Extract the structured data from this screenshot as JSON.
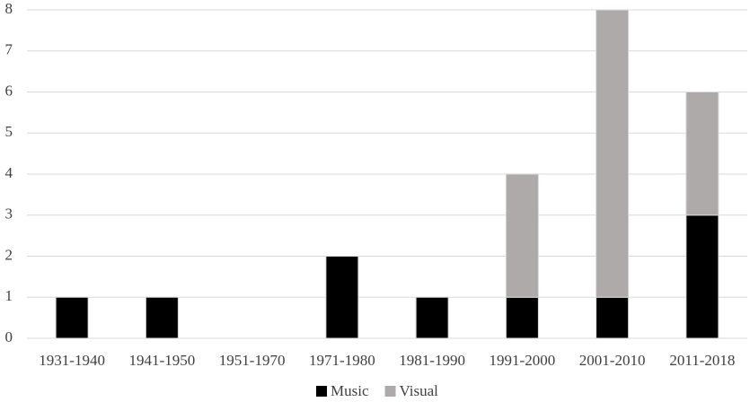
{
  "chart_data": {
    "type": "bar",
    "stacked": true,
    "categories": [
      "1931-1940",
      "1941-1950",
      "1951-1970",
      "1971-1980",
      "1981-1990",
      "1991-2000",
      "2001-2010",
      "2011-2018"
    ],
    "series": [
      {
        "name": "Music",
        "color": "#000000",
        "values": [
          1,
          1,
          0,
          2,
          1,
          1,
          1,
          3
        ]
      },
      {
        "name": "Visual",
        "color": "#aeaaaa",
        "values": [
          0,
          0,
          0,
          0,
          0,
          3,
          7,
          3
        ]
      }
    ],
    "ylim": [
      0,
      8
    ],
    "yticks": [
      0,
      1,
      2,
      3,
      4,
      5,
      6,
      7,
      8
    ],
    "grid": true,
    "legend": "bottom"
  }
}
